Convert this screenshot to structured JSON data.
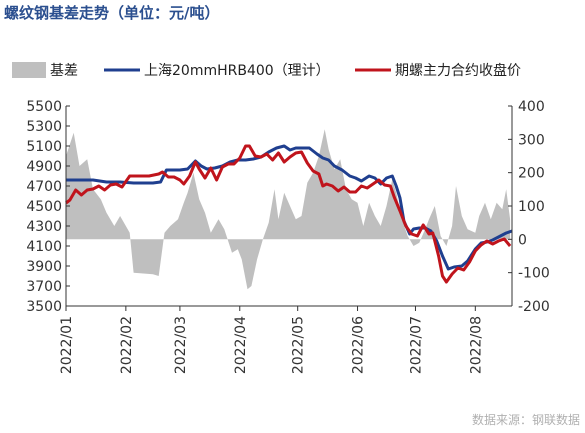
{
  "chart_data": {
    "type": "line",
    "title": "螺纹钢基差走势（单位：元/吨）",
    "source": "数据来源：钢联数据",
    "colors": {
      "basis": "#bfbfbf",
      "spot": "#1f3f8f",
      "futures": "#c0141c"
    },
    "legend_position": "top",
    "grid": false,
    "x_axis": {
      "type": "date",
      "range": [
        "2022-01-01",
        "2022-08-20"
      ],
      "tick_labels": [
        "2022/01",
        "2022/02",
        "2022/03",
        "2022/04",
        "2022/05",
        "2022/06",
        "2022/07",
        "2022/08"
      ],
      "tick_dates": [
        "2022-01-01",
        "2022-02-01",
        "2022-03-01",
        "2022-04-01",
        "2022-05-01",
        "2022-06-01",
        "2022-07-01",
        "2022-08-01"
      ]
    },
    "y_left": {
      "ylim": [
        3500,
        5500
      ],
      "ticks": [
        3500,
        3700,
        3900,
        4100,
        4300,
        4500,
        4700,
        4900,
        5100,
        5300,
        5500
      ]
    },
    "y_right": {
      "ylim": [
        -200,
        400
      ],
      "ticks": [
        -200,
        -100,
        0,
        100,
        200,
        300,
        400
      ]
    },
    "series": [
      {
        "name": "基差",
        "kind": "area",
        "axis": "right",
        "points": [
          [
            "2022-01-01",
            250
          ],
          [
            "2022-01-05",
            320
          ],
          [
            "2022-01-08",
            220
          ],
          [
            "2022-01-12",
            240
          ],
          [
            "2022-01-15",
            150
          ],
          [
            "2022-01-19",
            120
          ],
          [
            "2022-01-22",
            80
          ],
          [
            "2022-01-26",
            40
          ],
          [
            "2022-01-29",
            70
          ],
          [
            "2022-02-03",
            20
          ],
          [
            "2022-02-05",
            -100
          ],
          [
            "2022-02-15",
            -105
          ],
          [
            "2022-02-18",
            -110
          ],
          [
            "2022-02-21",
            20
          ],
          [
            "2022-02-24",
            40
          ],
          [
            "2022-02-28",
            60
          ],
          [
            "2022-03-03",
            110
          ],
          [
            "2022-03-05",
            140
          ],
          [
            "2022-03-08",
            200
          ],
          [
            "2022-03-11",
            120
          ],
          [
            "2022-03-14",
            80
          ],
          [
            "2022-03-17",
            20
          ],
          [
            "2022-03-21",
            60
          ],
          [
            "2022-03-24",
            30
          ],
          [
            "2022-03-28",
            -40
          ],
          [
            "2022-03-31",
            -30
          ],
          [
            "2022-04-02",
            -60
          ],
          [
            "2022-04-05",
            -150
          ],
          [
            "2022-04-07",
            -140
          ],
          [
            "2022-04-10",
            -60
          ],
          [
            "2022-04-13",
            0
          ],
          [
            "2022-04-16",
            50
          ],
          [
            "2022-04-19",
            150
          ],
          [
            "2022-04-21",
            60
          ],
          [
            "2022-04-24",
            140
          ],
          [
            "2022-04-27",
            100
          ],
          [
            "2022-04-30",
            60
          ],
          [
            "2022-05-03",
            70
          ],
          [
            "2022-05-06",
            170
          ],
          [
            "2022-05-09",
            200
          ],
          [
            "2022-05-12",
            250
          ],
          [
            "2022-05-15",
            330
          ],
          [
            "2022-05-17",
            270
          ],
          [
            "2022-05-20",
            210
          ],
          [
            "2022-05-23",
            240
          ],
          [
            "2022-05-26",
            150
          ],
          [
            "2022-05-29",
            120
          ],
          [
            "2022-06-01",
            110
          ],
          [
            "2022-06-04",
            40
          ],
          [
            "2022-06-07",
            110
          ],
          [
            "2022-06-10",
            70
          ],
          [
            "2022-06-13",
            40
          ],
          [
            "2022-06-16",
            100
          ],
          [
            "2022-06-19",
            180
          ],
          [
            "2022-06-21",
            140
          ],
          [
            "2022-06-24",
            60
          ],
          [
            "2022-06-27",
            10
          ],
          [
            "2022-06-30",
            -20
          ],
          [
            "2022-07-03",
            -10
          ],
          [
            "2022-07-06",
            30
          ],
          [
            "2022-07-08",
            60
          ],
          [
            "2022-07-11",
            100
          ],
          [
            "2022-07-14",
            10
          ],
          [
            "2022-07-17",
            -20
          ],
          [
            "2022-07-20",
            40
          ],
          [
            "2022-07-22",
            160
          ],
          [
            "2022-07-25",
            70
          ],
          [
            "2022-07-28",
            30
          ],
          [
            "2022-08-01",
            20
          ],
          [
            "2022-08-03",
            70
          ],
          [
            "2022-08-06",
            110
          ],
          [
            "2022-08-09",
            60
          ],
          [
            "2022-08-12",
            110
          ],
          [
            "2022-08-15",
            90
          ],
          [
            "2022-08-17",
            150
          ],
          [
            "2022-08-19",
            60
          ]
        ]
      },
      {
        "name": "上海20mmHRB400（理计）",
        "kind": "line",
        "axis": "left",
        "points": [
          [
            "2022-01-01",
            4760
          ],
          [
            "2022-01-08",
            4760
          ],
          [
            "2022-01-15",
            4760
          ],
          [
            "2022-01-22",
            4740
          ],
          [
            "2022-01-29",
            4740
          ],
          [
            "2022-02-05",
            4730
          ],
          [
            "2022-02-10",
            4730
          ],
          [
            "2022-02-15",
            4730
          ],
          [
            "2022-02-19",
            4740
          ],
          [
            "2022-02-22",
            4860
          ],
          [
            "2022-02-25",
            4860
          ],
          [
            "2022-03-01",
            4860
          ],
          [
            "2022-03-05",
            4870
          ],
          [
            "2022-03-09",
            4950
          ],
          [
            "2022-03-12",
            4900
          ],
          [
            "2022-03-15",
            4870
          ],
          [
            "2022-03-19",
            4880
          ],
          [
            "2022-03-23",
            4900
          ],
          [
            "2022-03-27",
            4940
          ],
          [
            "2022-03-31",
            4960
          ],
          [
            "2022-04-04",
            4960
          ],
          [
            "2022-04-08",
            4970
          ],
          [
            "2022-04-12",
            4990
          ],
          [
            "2022-04-16",
            5040
          ],
          [
            "2022-04-20",
            5080
          ],
          [
            "2022-04-24",
            5100
          ],
          [
            "2022-04-27",
            5060
          ],
          [
            "2022-04-30",
            5080
          ],
          [
            "2022-05-04",
            5080
          ],
          [
            "2022-05-07",
            5080
          ],
          [
            "2022-05-11",
            5020
          ],
          [
            "2022-05-14",
            4980
          ],
          [
            "2022-05-17",
            4960
          ],
          [
            "2022-05-20",
            4900
          ],
          [
            "2022-05-24",
            4860
          ],
          [
            "2022-05-28",
            4800
          ],
          [
            "2022-05-31",
            4780
          ],
          [
            "2022-06-03",
            4750
          ],
          [
            "2022-06-07",
            4800
          ],
          [
            "2022-06-10",
            4780
          ],
          [
            "2022-06-13",
            4720
          ],
          [
            "2022-06-16",
            4780
          ],
          [
            "2022-06-19",
            4800
          ],
          [
            "2022-06-21",
            4700
          ],
          [
            "2022-06-23",
            4580
          ],
          [
            "2022-06-25",
            4350
          ],
          [
            "2022-06-28",
            4220
          ],
          [
            "2022-06-30",
            4270
          ],
          [
            "2022-07-03",
            4280
          ],
          [
            "2022-07-06",
            4280
          ],
          [
            "2022-07-09",
            4250
          ],
          [
            "2022-07-12",
            4150
          ],
          [
            "2022-07-15",
            4000
          ],
          [
            "2022-07-18",
            3870
          ],
          [
            "2022-07-21",
            3890
          ],
          [
            "2022-07-25",
            3900
          ],
          [
            "2022-07-28",
            3950
          ],
          [
            "2022-08-01",
            4070
          ],
          [
            "2022-08-04",
            4130
          ],
          [
            "2022-08-07",
            4140
          ],
          [
            "2022-08-10",
            4160
          ],
          [
            "2022-08-14",
            4200
          ],
          [
            "2022-08-17",
            4230
          ],
          [
            "2022-08-20",
            4250
          ]
        ]
      },
      {
        "name": "期螺主力合约收盘价",
        "kind": "line",
        "axis": "left",
        "points": [
          [
            "2022-01-01",
            4530
          ],
          [
            "2022-01-03",
            4560
          ],
          [
            "2022-01-06",
            4660
          ],
          [
            "2022-01-09",
            4610
          ],
          [
            "2022-01-12",
            4660
          ],
          [
            "2022-01-15",
            4670
          ],
          [
            "2022-01-18",
            4700
          ],
          [
            "2022-01-21",
            4660
          ],
          [
            "2022-01-24",
            4710
          ],
          [
            "2022-01-27",
            4720
          ],
          [
            "2022-01-30",
            4690
          ],
          [
            "2022-02-03",
            4800
          ],
          [
            "2022-02-08",
            4800
          ],
          [
            "2022-02-13",
            4800
          ],
          [
            "2022-02-18",
            4820
          ],
          [
            "2022-02-20",
            4840
          ],
          [
            "2022-02-23",
            4790
          ],
          [
            "2022-02-26",
            4790
          ],
          [
            "2022-03-01",
            4760
          ],
          [
            "2022-03-03",
            4720
          ],
          [
            "2022-03-06",
            4800
          ],
          [
            "2022-03-09",
            4940
          ],
          [
            "2022-03-11",
            4870
          ],
          [
            "2022-03-14",
            4780
          ],
          [
            "2022-03-17",
            4880
          ],
          [
            "2022-03-20",
            4760
          ],
          [
            "2022-03-23",
            4890
          ],
          [
            "2022-03-26",
            4920
          ],
          [
            "2022-03-29",
            4920
          ],
          [
            "2022-04-01",
            4980
          ],
          [
            "2022-04-04",
            5100
          ],
          [
            "2022-04-06",
            5100
          ],
          [
            "2022-04-09",
            5000
          ],
          [
            "2022-04-12",
            4990
          ],
          [
            "2022-04-15",
            5020
          ],
          [
            "2022-04-18",
            4960
          ],
          [
            "2022-04-21",
            5030
          ],
          [
            "2022-04-24",
            4940
          ],
          [
            "2022-04-27",
            4990
          ],
          [
            "2022-04-30",
            5030
          ],
          [
            "2022-05-03",
            5040
          ],
          [
            "2022-05-06",
            4930
          ],
          [
            "2022-05-09",
            4850
          ],
          [
            "2022-05-12",
            4820
          ],
          [
            "2022-05-14",
            4700
          ],
          [
            "2022-05-16",
            4720
          ],
          [
            "2022-05-19",
            4700
          ],
          [
            "2022-05-22",
            4650
          ],
          [
            "2022-05-25",
            4690
          ],
          [
            "2022-05-28",
            4640
          ],
          [
            "2022-05-31",
            4640
          ],
          [
            "2022-06-03",
            4700
          ],
          [
            "2022-06-06",
            4680
          ],
          [
            "2022-06-09",
            4720
          ],
          [
            "2022-06-12",
            4760
          ],
          [
            "2022-06-15",
            4710
          ],
          [
            "2022-06-18",
            4700
          ],
          [
            "2022-06-20",
            4590
          ],
          [
            "2022-06-23",
            4450
          ],
          [
            "2022-06-26",
            4300
          ],
          [
            "2022-06-29",
            4220
          ],
          [
            "2022-07-02",
            4200
          ],
          [
            "2022-07-05",
            4310
          ],
          [
            "2022-07-08",
            4220
          ],
          [
            "2022-07-10",
            4230
          ],
          [
            "2022-07-13",
            4000
          ],
          [
            "2022-07-15",
            3800
          ],
          [
            "2022-07-17",
            3740
          ],
          [
            "2022-07-20",
            3820
          ],
          [
            "2022-07-23",
            3880
          ],
          [
            "2022-07-26",
            3860
          ],
          [
            "2022-07-29",
            3940
          ],
          [
            "2022-08-01",
            4050
          ],
          [
            "2022-08-04",
            4110
          ],
          [
            "2022-08-07",
            4150
          ],
          [
            "2022-08-10",
            4120
          ],
          [
            "2022-08-13",
            4150
          ],
          [
            "2022-08-16",
            4170
          ],
          [
            "2022-08-19",
            4100
          ]
        ]
      }
    ]
  }
}
